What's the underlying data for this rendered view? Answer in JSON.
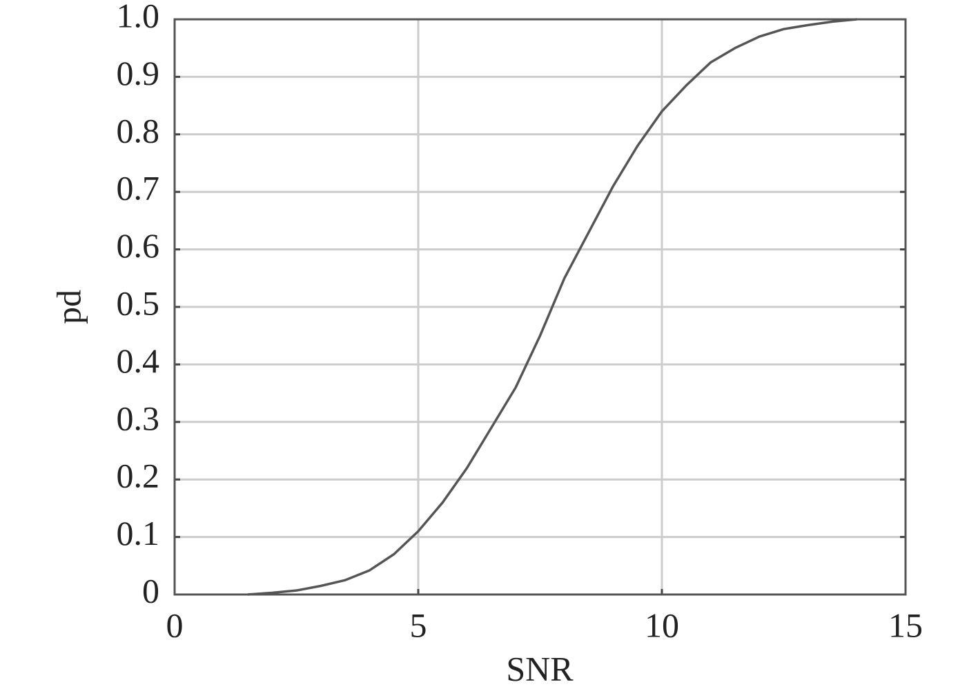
{
  "chart_data": {
    "type": "line",
    "x_label": "SNR",
    "y_label": "pd",
    "x": [
      1.5,
      2,
      2.5,
      3,
      3.5,
      4,
      4.5,
      5,
      5.5,
      6,
      6.5,
      7,
      7.5,
      8,
      8.5,
      9,
      9.5,
      10,
      10.5,
      11,
      11.5,
      12,
      12.5,
      13,
      13.5,
      14
    ],
    "series": [
      {
        "color": "#555555",
        "values": [
          0,
          0.003,
          0.007,
          0.015,
          0.025,
          0.042,
          0.07,
          0.11,
          0.16,
          0.22,
          0.29,
          0.36,
          0.45,
          0.55,
          0.63,
          0.71,
          0.78,
          0.84,
          0.885,
          0.925,
          0.95,
          0.97,
          0.983,
          0.99,
          0.996,
          1.0
        ]
      }
    ],
    "xlim": [
      0,
      15
    ],
    "xticks": [
      0,
      5,
      10,
      15
    ],
    "ylim": [
      0,
      1
    ],
    "yticks": [
      0,
      0.1,
      0.2,
      0.3,
      0.4,
      0.5,
      0.6,
      0.7,
      0.8,
      0.9,
      {
        "value": 1,
        "label": "1.0"
      }
    ],
    "grid": true
  }
}
